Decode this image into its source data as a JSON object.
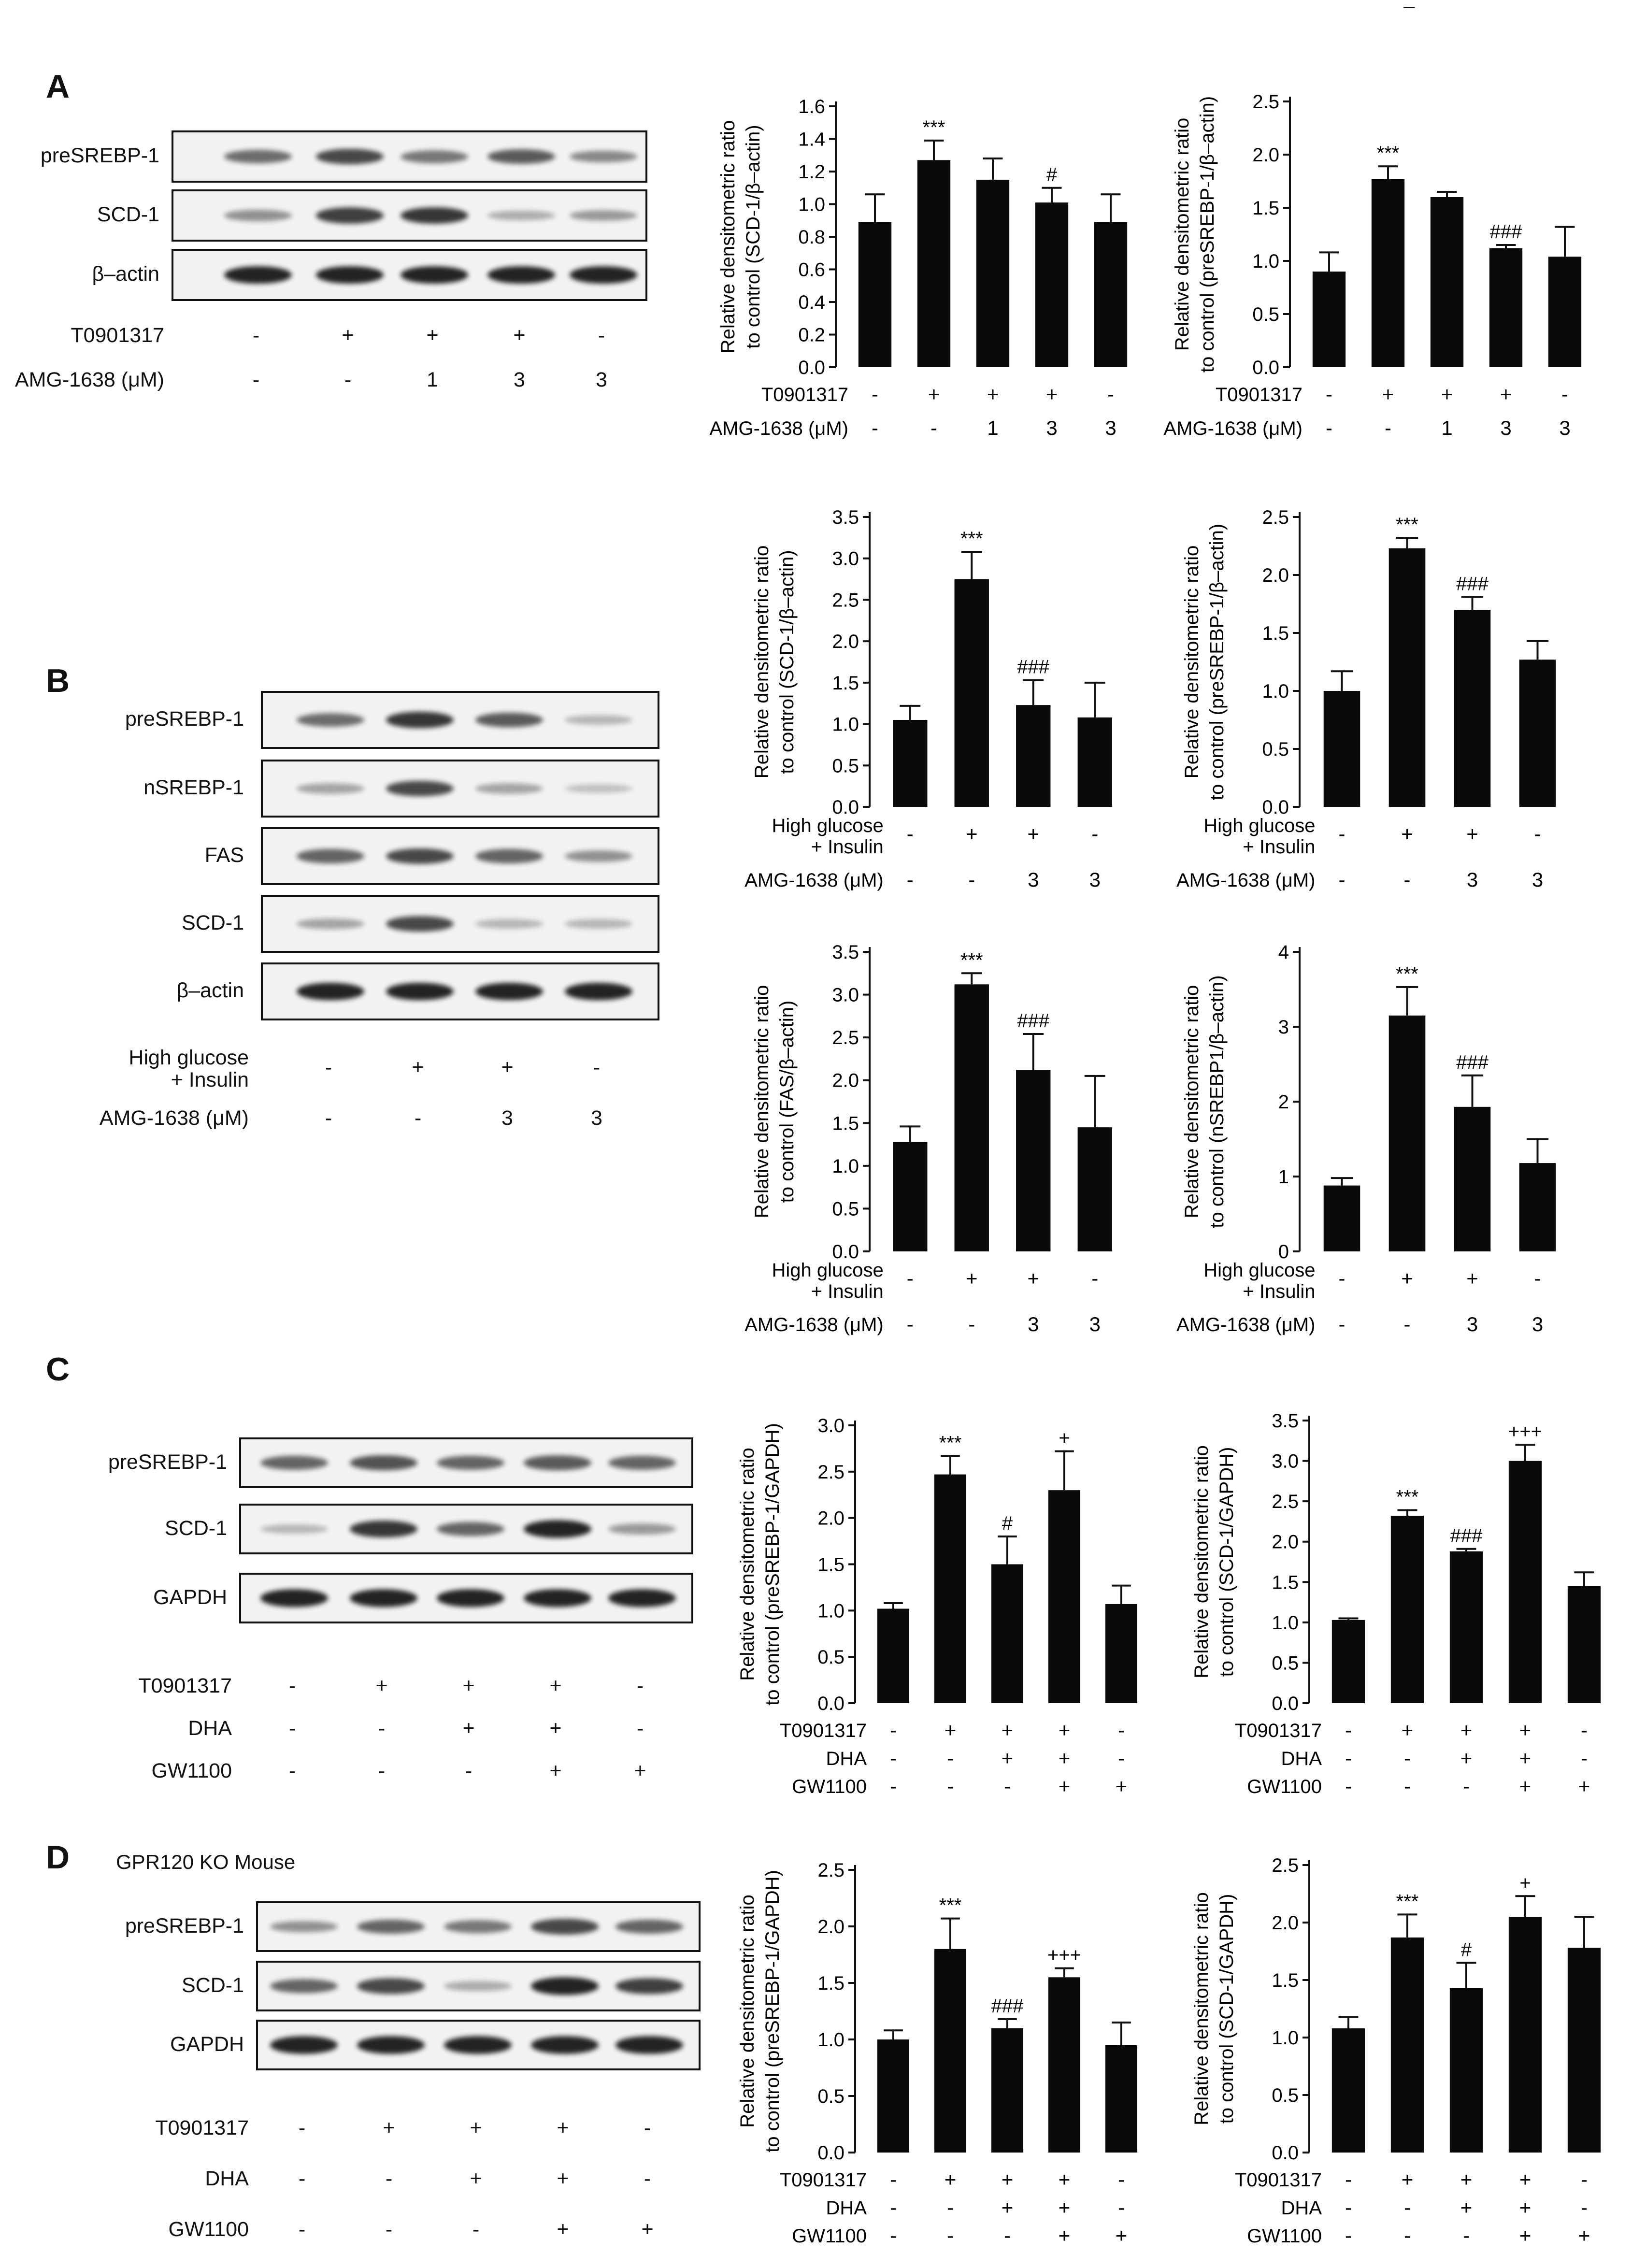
{
  "figure": {
    "panels": [
      {
        "letter": "A",
        "blot_rows": [
          "preSREBP-1",
          "SCD-1",
          "β–actin"
        ],
        "band_intensity": [
          [
            0.55,
            0.75,
            0.5,
            0.65,
            0.4
          ],
          [
            0.35,
            0.8,
            0.85,
            0.2,
            0.3
          ],
          [
            0.95,
            0.95,
            0.95,
            0.95,
            0.95
          ]
        ],
        "treatments": [
          {
            "label": "T0901317",
            "symbols": [
              "-",
              "+",
              "+",
              "+",
              "-"
            ]
          },
          {
            "label": "AMG-1638 (μM)",
            "symbols": [
              "-",
              "-",
              "1",
              "3",
              "3"
            ]
          }
        ]
      },
      {
        "letter": "B",
        "blot_rows": [
          "preSREBP-1",
          "nSREBP-1",
          "FAS",
          "SCD-1",
          "β–actin"
        ],
        "band_intensity": [
          [
            0.55,
            0.85,
            0.65,
            0.15
          ],
          [
            0.25,
            0.75,
            0.25,
            0.1
          ],
          [
            0.6,
            0.75,
            0.6,
            0.35
          ],
          [
            0.25,
            0.75,
            0.15,
            0.15
          ],
          [
            0.95,
            0.95,
            0.95,
            0.95
          ]
        ],
        "treatments": [
          {
            "label": "High glucose",
            "label2": "+ Insulin",
            "symbols": [
              "-",
              "+",
              "+",
              "-"
            ]
          },
          {
            "label": "AMG-1638 (μM)",
            "symbols": [
              "-",
              "-",
              "3",
              "3"
            ]
          }
        ]
      },
      {
        "letter": "C",
        "blot_rows": [
          "preSREBP-1",
          "SCD-1",
          "GAPDH"
        ],
        "band_intensity": [
          [
            0.6,
            0.7,
            0.6,
            0.65,
            0.6
          ],
          [
            0.15,
            0.85,
            0.6,
            0.95,
            0.3
          ],
          [
            0.95,
            0.95,
            0.95,
            0.95,
            0.95
          ]
        ],
        "treatments": [
          {
            "label": "T0901317",
            "symbols": [
              "-",
              "+",
              "+",
              "+",
              "-"
            ]
          },
          {
            "label": "DHA",
            "symbols": [
              "-",
              "-",
              "+",
              "+",
              "-"
            ]
          },
          {
            "label": "GW1100",
            "symbols": [
              "-",
              "-",
              "-",
              "+",
              "+"
            ]
          }
        ]
      },
      {
        "letter": "D",
        "note": "GPR120 KO Mouse",
        "blot_rows": [
          "preSREBP-1",
          "SCD-1",
          "GAPDH"
        ],
        "band_intensity": [
          [
            0.35,
            0.6,
            0.5,
            0.75,
            0.6
          ],
          [
            0.6,
            0.75,
            0.2,
            0.95,
            0.8
          ],
          [
            0.95,
            0.95,
            0.95,
            0.95,
            0.95
          ]
        ],
        "treatments": [
          {
            "label": "T0901317",
            "symbols": [
              "-",
              "+",
              "+",
              "+",
              "-"
            ]
          },
          {
            "label": "DHA",
            "symbols": [
              "-",
              "-",
              "+",
              "+",
              "-"
            ]
          },
          {
            "label": "GW1100",
            "symbols": [
              "-",
              "-",
              "-",
              "+",
              "+"
            ]
          }
        ]
      }
    ],
    "stray_mark": "–"
  },
  "chart_data": [
    {
      "type": "bar",
      "panel": "A",
      "ylabel": [
        "Relative densitometric ratio",
        "to control (SCD-1/β–actin)"
      ],
      "ylim": [
        0,
        1.6
      ],
      "yticks": [
        "0.0",
        "0.2",
        "0.4",
        "0.6",
        "0.8",
        "1.0",
        "1.2",
        "1.4",
        "1.6"
      ],
      "values": [
        0.89,
        1.27,
        1.15,
        1.01,
        0.89
      ],
      "errors": [
        0.17,
        0.12,
        0.13,
        0.09,
        0.17
      ],
      "annotations": [
        "",
        "***",
        "",
        "#",
        ""
      ],
      "treatments": [
        {
          "label": "T0901317",
          "symbols": [
            "-",
            "+",
            "+",
            "+",
            "-"
          ]
        },
        {
          "label": "AMG-1638 (μM)",
          "symbols": [
            "-",
            "-",
            "1",
            "3",
            "3"
          ]
        }
      ]
    },
    {
      "type": "bar",
      "panel": "A",
      "ylabel": [
        "Relative densitometric ratio",
        "to control (preSREBP-1/β–actin)"
      ],
      "ylim": [
        0,
        2.5
      ],
      "yticks": [
        "0.0",
        "0.5",
        "1.0",
        "1.5",
        "2.0",
        "2.5"
      ],
      "values": [
        0.9,
        1.77,
        1.6,
        1.12,
        1.04
      ],
      "errors": [
        0.18,
        0.12,
        0.05,
        0.03,
        0.28
      ],
      "annotations": [
        "",
        "***",
        "",
        "###",
        ""
      ],
      "treatments": [
        {
          "label": "T0901317",
          "symbols": [
            "-",
            "+",
            "+",
            "+",
            "-"
          ]
        },
        {
          "label": "AMG-1638 (μM)",
          "symbols": [
            "-",
            "-",
            "1",
            "3",
            "3"
          ]
        }
      ]
    },
    {
      "type": "bar",
      "panel": "B",
      "ylabel": [
        "Relative densitometric ratio",
        "to control (SCD-1/β–actin)"
      ],
      "ylim": [
        0,
        3.5
      ],
      "yticks": [
        "0.0",
        "0.5",
        "1.0",
        "1.5",
        "2.0",
        "2.5",
        "3.0",
        "3.5"
      ],
      "values": [
        1.05,
        2.75,
        1.23,
        1.08
      ],
      "errors": [
        0.17,
        0.33,
        0.3,
        0.42
      ],
      "annotations": [
        "",
        "***",
        "###",
        ""
      ],
      "treatments": [
        {
          "label": "High glucose",
          "label2": "+ Insulin",
          "symbols": [
            "-",
            "+",
            "+",
            "-"
          ]
        },
        {
          "label": "AMG-1638 (μM)",
          "symbols": [
            "-",
            "-",
            "3",
            "3"
          ]
        }
      ]
    },
    {
      "type": "bar",
      "panel": "B",
      "ylabel": [
        "Relative densitometric ratio",
        "to control (preSREBP-1/β–actin)"
      ],
      "ylim": [
        0,
        2.5
      ],
      "yticks": [
        "0.0",
        "0.5",
        "1.0",
        "1.5",
        "2.0",
        "2.5"
      ],
      "values": [
        1.0,
        2.23,
        1.7,
        1.27
      ],
      "errors": [
        0.17,
        0.09,
        0.11,
        0.16
      ],
      "annotations": [
        "",
        "***",
        "###",
        ""
      ],
      "treatments": [
        {
          "label": "High glucose",
          "label2": "+ Insulin",
          "symbols": [
            "-",
            "+",
            "+",
            "-"
          ]
        },
        {
          "label": "AMG-1638 (μM)",
          "symbols": [
            "-",
            "-",
            "3",
            "3"
          ]
        }
      ]
    },
    {
      "type": "bar",
      "panel": "B",
      "ylabel": [
        "Relative densitometric ratio",
        "to control (FAS/β–actin)"
      ],
      "ylim": [
        0,
        3.5
      ],
      "yticks": [
        "0.0",
        "0.5",
        "1.0",
        "1.5",
        "2.0",
        "2.5",
        "3.0",
        "3.5"
      ],
      "values": [
        1.28,
        3.12,
        2.12,
        1.45
      ],
      "errors": [
        0.18,
        0.13,
        0.42,
        0.6
      ],
      "annotations": [
        "",
        "***",
        "###",
        ""
      ],
      "treatments": [
        {
          "label": "High glucose",
          "label2": "+ Insulin",
          "symbols": [
            "-",
            "+",
            "+",
            "-"
          ]
        },
        {
          "label": "AMG-1638 (μM)",
          "symbols": [
            "-",
            "-",
            "3",
            "3"
          ]
        }
      ]
    },
    {
      "type": "bar",
      "panel": "B",
      "ylabel": [
        "Relative densitometric ratio",
        "to control (nSREBP1/β–actin)"
      ],
      "ylim": [
        0,
        4
      ],
      "yticks": [
        "0",
        "1",
        "2",
        "3",
        "4"
      ],
      "values": [
        0.88,
        3.15,
        1.93,
        1.18
      ],
      "errors": [
        0.1,
        0.38,
        0.42,
        0.32
      ],
      "annotations": [
        "",
        "***",
        "###",
        ""
      ],
      "treatments": [
        {
          "label": "High glucose",
          "label2": "+ Insulin",
          "symbols": [
            "-",
            "+",
            "+",
            "-"
          ]
        },
        {
          "label": "AMG-1638 (μM)",
          "symbols": [
            "-",
            "-",
            "3",
            "3"
          ]
        }
      ]
    },
    {
      "type": "bar",
      "panel": "C",
      "ylabel": [
        "Relative densitometric ratio",
        "to control (preSREBP-1/GAPDH)"
      ],
      "ylim": [
        0,
        3.0
      ],
      "yticks": [
        "0.0",
        "0.5",
        "1.0",
        "1.5",
        "2.0",
        "2.5",
        "3.0"
      ],
      "values": [
        1.02,
        2.47,
        1.5,
        2.3,
        1.07
      ],
      "errors": [
        0.06,
        0.2,
        0.3,
        0.42,
        0.2
      ],
      "annotations": [
        "",
        "***",
        "#",
        "+",
        ""
      ],
      "treatments": [
        {
          "label": "T0901317",
          "symbols": [
            "-",
            "+",
            "+",
            "+",
            "-"
          ]
        },
        {
          "label": "DHA",
          "symbols": [
            "-",
            "-",
            "+",
            "+",
            "-"
          ]
        },
        {
          "label": "GW1100",
          "symbols": [
            "-",
            "-",
            "-",
            "+",
            "+"
          ]
        }
      ]
    },
    {
      "type": "bar",
      "panel": "C",
      "ylabel": [
        "Relative densitometric ratio",
        "to control (SCD-1/GAPDH)"
      ],
      "ylim": [
        0,
        3.5
      ],
      "yticks": [
        "0.0",
        "0.5",
        "1.0",
        "1.5",
        "2.0",
        "2.5",
        "3.0",
        "3.5"
      ],
      "values": [
        1.03,
        2.32,
        1.88,
        3.0,
        1.45
      ],
      "errors": [
        0.02,
        0.07,
        0.03,
        0.2,
        0.17
      ],
      "annotations": [
        "",
        "***",
        "###",
        "+++",
        ""
      ],
      "treatments": [
        {
          "label": "T0901317",
          "symbols": [
            "-",
            "+",
            "+",
            "+",
            "-"
          ]
        },
        {
          "label": "DHA",
          "symbols": [
            "-",
            "-",
            "+",
            "+",
            "-"
          ]
        },
        {
          "label": "GW1100",
          "symbols": [
            "-",
            "-",
            "-",
            "+",
            "+"
          ]
        }
      ]
    },
    {
      "type": "bar",
      "panel": "D",
      "ylabel": [
        "Relative densitometric ratio",
        "to control (preSREBP-1/GAPDH)"
      ],
      "ylim": [
        0,
        2.5
      ],
      "yticks": [
        "0.0",
        "0.5",
        "1.0",
        "1.5",
        "2.0",
        "2.5"
      ],
      "values": [
        1.0,
        1.8,
        1.1,
        1.55,
        0.95
      ],
      "errors": [
        0.08,
        0.27,
        0.08,
        0.08,
        0.2
      ],
      "annotations": [
        "",
        "***",
        "###",
        "+++",
        ""
      ],
      "treatments": [
        {
          "label": "T0901317",
          "symbols": [
            "-",
            "+",
            "+",
            "+",
            "-"
          ]
        },
        {
          "label": "DHA",
          "symbols": [
            "-",
            "-",
            "+",
            "+",
            "-"
          ]
        },
        {
          "label": "GW1100",
          "symbols": [
            "-",
            "-",
            "-",
            "+",
            "+"
          ]
        }
      ]
    },
    {
      "type": "bar",
      "panel": "D",
      "ylabel": [
        "Relative densitometric ratio",
        "to control (SCD-1/GAPDH)"
      ],
      "ylim": [
        0,
        2.5
      ],
      "yticks": [
        "0.0",
        "0.5",
        "1.0",
        "1.5",
        "2.0",
        "2.5"
      ],
      "values": [
        1.08,
        1.87,
        1.43,
        2.05,
        1.78
      ],
      "errors": [
        0.1,
        0.2,
        0.22,
        0.18,
        0.27
      ],
      "annotations": [
        "",
        "***",
        "#",
        "+",
        ""
      ],
      "treatments": [
        {
          "label": "T0901317",
          "symbols": [
            "-",
            "+",
            "+",
            "+",
            "-"
          ]
        },
        {
          "label": "DHA",
          "symbols": [
            "-",
            "-",
            "+",
            "+",
            "-"
          ]
        },
        {
          "label": "GW1100",
          "symbols": [
            "-",
            "-",
            "-",
            "+",
            "+"
          ]
        }
      ]
    }
  ]
}
